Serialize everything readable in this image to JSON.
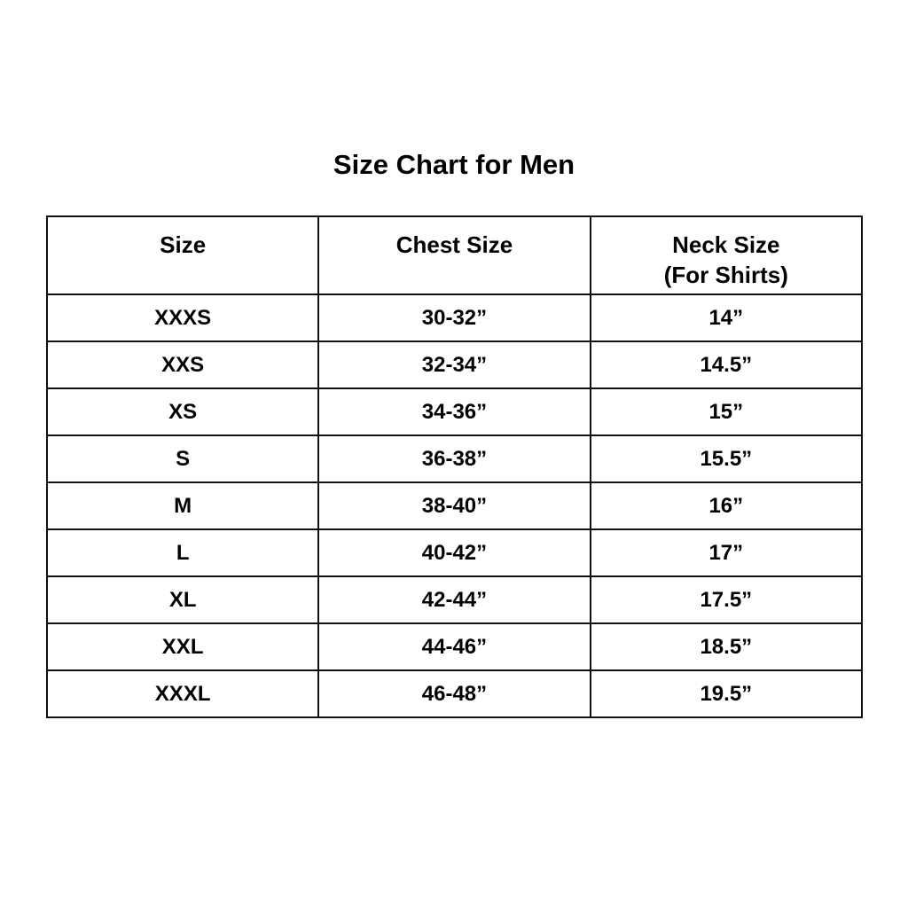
{
  "title": "Size Chart for Men",
  "table": {
    "headers": [
      {
        "label": "Size",
        "sub": ""
      },
      {
        "label": "Chest Size",
        "sub": ""
      },
      {
        "label": "Neck Size",
        "sub": "(For Shirts)"
      }
    ],
    "rows": [
      [
        "XXXS",
        "30-32”",
        "14”"
      ],
      [
        "XXS",
        "32-34”",
        "14.5”"
      ],
      [
        "XS",
        "34-36”",
        "15”"
      ],
      [
        "S",
        "36-38”",
        "15.5”"
      ],
      [
        "M",
        "38-40”",
        "16”"
      ],
      [
        "L",
        "40-42”",
        "17”"
      ],
      [
        "XL",
        "42-44”",
        "17.5”"
      ],
      [
        "XXL",
        "44-46”",
        "18.5”"
      ],
      [
        "XXXL",
        "46-48”",
        "19.5”"
      ]
    ]
  }
}
